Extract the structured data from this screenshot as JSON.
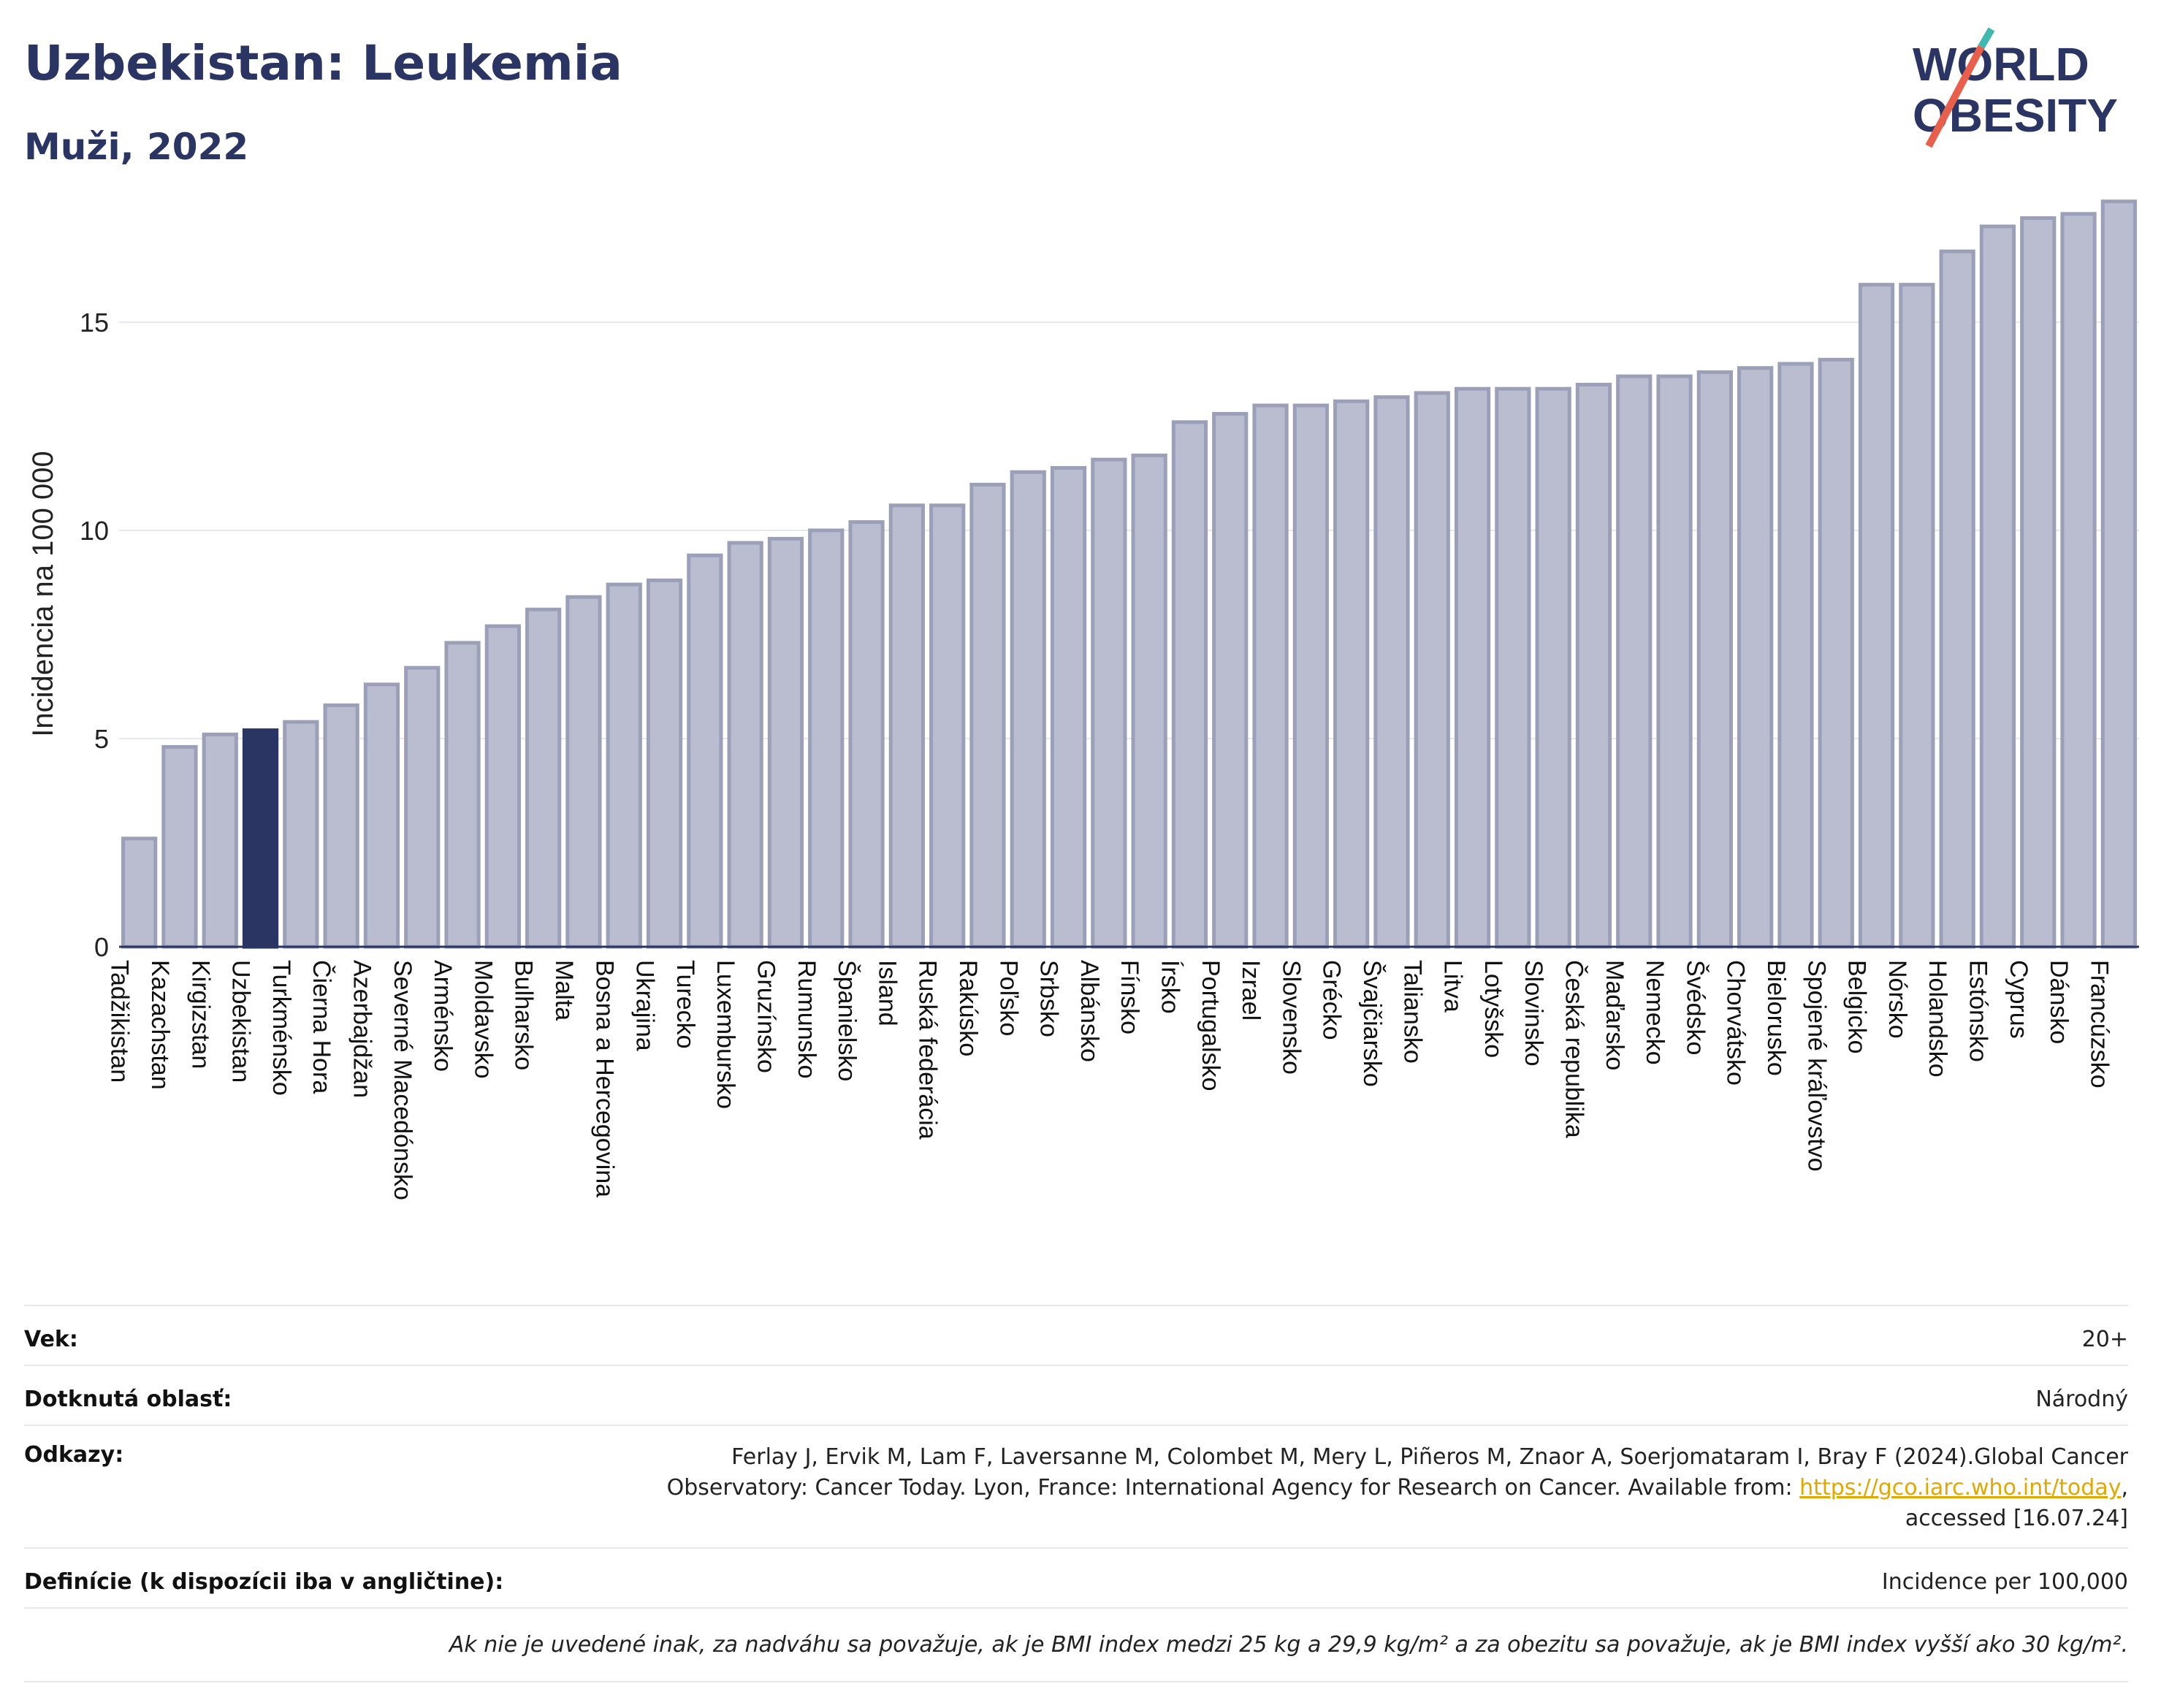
{
  "header": {
    "title": "Uzbekistan: Leukemia",
    "subtitle": "Muži, 2022"
  },
  "logo": {
    "line1": "WORLD",
    "line2": "OBESITY"
  },
  "colors": {
    "highlight": "#2b3564",
    "bar": "#b9bdcf",
    "bar_edge": "#9ba0b8",
    "accent_logo": "#e8604c",
    "accent_logo2": "#3fb8b0"
  },
  "chart_data": {
    "type": "bar",
    "ylabel": "Incidencia na 100 000",
    "ylim": [
      0,
      18
    ],
    "yticks": [
      0,
      5,
      10,
      15
    ],
    "highlight": "Uzbekistan",
    "categories": [
      "Tadžikistan",
      "Kazachstan",
      "Kirgizstan",
      "Uzbekistan",
      "Turkménsko",
      "Čierna Hora",
      "Azerbajdžan",
      "Severné Macedónsko",
      "Arménsko",
      "Moldavsko",
      "Bulharsko",
      "Malta",
      "Bosna a Hercegovina",
      "Ukrajina",
      "Turecko",
      "Luxembursko",
      "Gruzínsko",
      "Rumunsko",
      "Španielsko",
      "Island",
      "Ruská federácia",
      "Rakúsko",
      "Poľsko",
      "Srbsko",
      "Albánsko",
      "Fínsko",
      "Írsko",
      "Portugalsko",
      "Izrael",
      "Slovensko",
      "Grécko",
      "Švajčiarsko",
      "Taliansko",
      "Litva",
      "Lotyšsko",
      "Slovinsko",
      "Česká republika",
      "Maďarsko",
      "Nemecko",
      "Švédsko",
      "Chorvátsko",
      "Bielorusko",
      "Spojené kráľovstvo",
      "Belgicko",
      "Nórsko",
      "Holandsko",
      "Estónsko",
      "Cyprus",
      "Dánsko",
      "Francúzsko"
    ],
    "values": [
      2.6,
      4.8,
      5.1,
      5.2,
      5.4,
      5.8,
      6.3,
      6.7,
      7.3,
      7.7,
      8.1,
      8.4,
      8.7,
      8.8,
      9.4,
      9.7,
      9.8,
      10.0,
      10.2,
      10.6,
      10.6,
      11.1,
      11.4,
      11.5,
      11.7,
      11.8,
      12.6,
      12.8,
      13.0,
      13.0,
      13.1,
      13.2,
      13.3,
      13.4,
      13.4,
      13.4,
      13.5,
      13.7,
      13.7,
      13.8,
      13.9,
      14.0,
      14.1,
      15.9,
      15.9,
      16.7,
      17.3,
      17.5,
      17.6,
      17.9
    ]
  },
  "meta": {
    "age_label": "Vek:",
    "age_value": "20+",
    "area_label": "Dotknutá oblasť:",
    "area_value": "Národný",
    "refs_label": "Odkazy:",
    "refs_text": "Ferlay J, Ervik M, Lam F, Laversanne M, Colombet M, Mery L, Piñeros M, Znaor A, Soerjomataram I, Bray F (2024).Global Cancer Observatory: Cancer Today. Lyon, France: International Agency for Research on Cancer. Available from:",
    "refs_link": "https://gco.iarc.who.int/today",
    "refs_tail": ", accessed [16.07.24]",
    "def_label": "Definície (k dispozícii iba v angličtine):",
    "def_value": "Incidence per 100,000",
    "note": "Ak nie je uvedené inak, za nadváhu sa považuje, ak je BMI index medzi 25 kg a 29,9 kg/m² a za obezitu sa považuje, ak je BMI index vyšší ako 30 kg/m²."
  }
}
